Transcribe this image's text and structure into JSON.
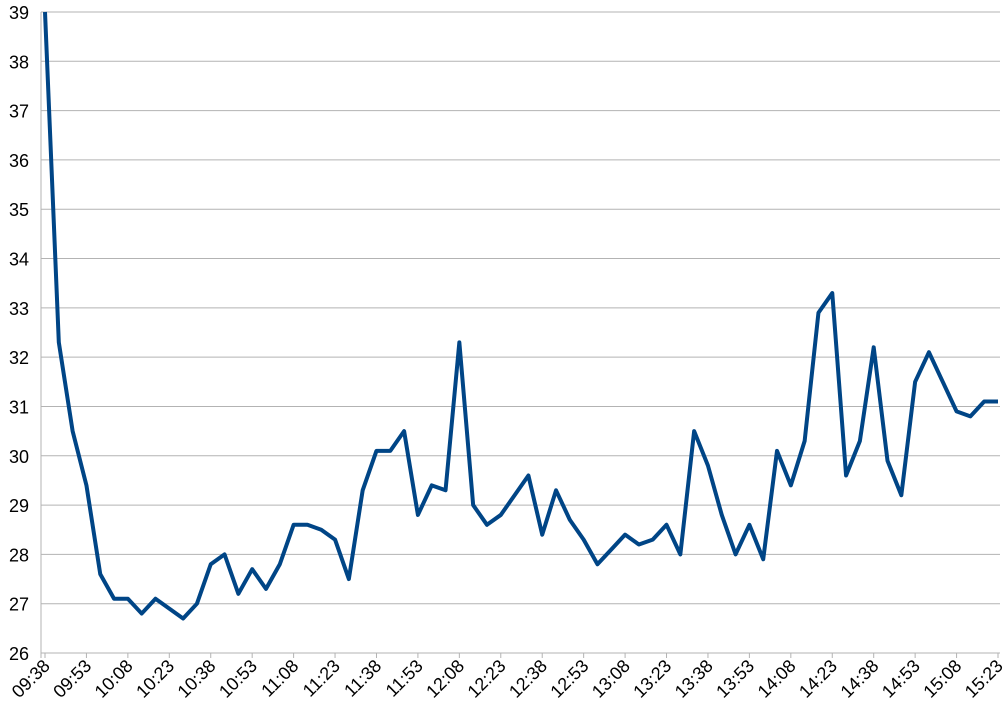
{
  "chart_data": {
    "type": "line",
    "categories": [
      "09:38",
      null,
      null,
      "09:53",
      null,
      null,
      "10:08",
      null,
      null,
      "10:23",
      null,
      null,
      "10:38",
      null,
      null,
      "10:53",
      null,
      null,
      "11:08",
      null,
      null,
      "11:23",
      null,
      null,
      "11:38",
      null,
      null,
      "11:53",
      null,
      null,
      "12:08",
      null,
      null,
      "12:23",
      null,
      null,
      "12:38",
      null,
      null,
      "12:53",
      null,
      null,
      "13:08",
      null,
      null,
      "13:23",
      null,
      null,
      "13:38",
      null,
      null,
      "13:53",
      null,
      null,
      "14:08",
      null,
      null,
      "14:23",
      null,
      null,
      "14:38",
      null,
      null,
      "14:53",
      null,
      null,
      "15:08",
      null,
      null,
      "15:23"
    ],
    "values": [
      39,
      32.3,
      30.5,
      29.4,
      27.6,
      27.1,
      27.1,
      26.8,
      27.1,
      26.9,
      26.7,
      27.0,
      27.8,
      28.0,
      27.2,
      27.7,
      27.3,
      27.8,
      28.6,
      28.6,
      28.5,
      28.3,
      27.5,
      29.3,
      30.1,
      30.1,
      30.5,
      28.8,
      29.4,
      29.3,
      32.3,
      29.0,
      28.6,
      28.8,
      29.2,
      29.6,
      28.4,
      29.3,
      28.7,
      28.3,
      27.8,
      28.1,
      28.4,
      28.2,
      28.3,
      28.6,
      28.0,
      30.5,
      29.8,
      28.8,
      28.0,
      28.6,
      27.9,
      30.1,
      29.4,
      30.3,
      32.9,
      33.3,
      29.6,
      30.3,
      32.2,
      29.9,
      29.2,
      31.5,
      32.1,
      31.5,
      30.9,
      30.8,
      31.1,
      31.1
    ],
    "color": "#004586",
    "ylim": [
      26,
      39
    ],
    "yticks": [
      26,
      27,
      28,
      29,
      30,
      31,
      32,
      33,
      34,
      35,
      36,
      37,
      38,
      39
    ],
    "grid": true
  }
}
